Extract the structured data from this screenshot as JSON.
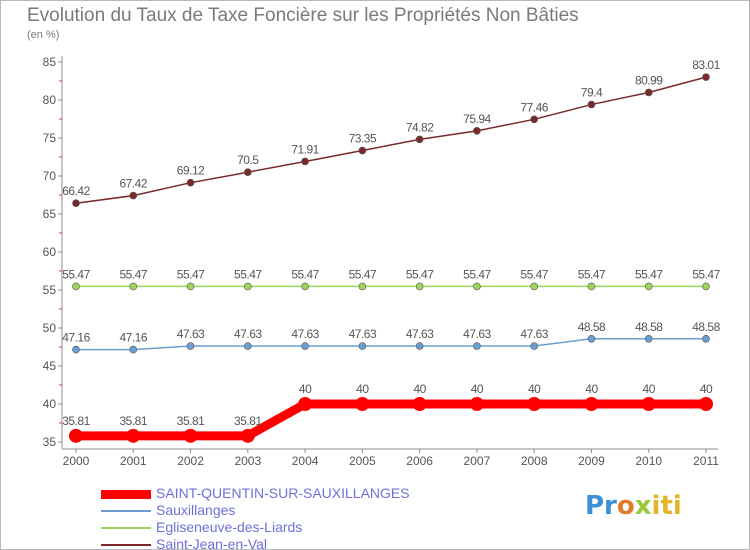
{
  "header": {
    "title": "Evolution du Taux de Taxe Foncière sur les Propriétés Non Bâties",
    "subtitle": "(en %)"
  },
  "logo": {
    "text": "Proxiti"
  },
  "colors": {
    "background": "#ffffff",
    "axis": "#8c8c8c",
    "tick_mark": "#d04040",
    "label": "#555555",
    "legend_text": "#6f6fdc"
  },
  "chart_data": {
    "type": "line",
    "title": "Evolution du Taux de Taxe Foncière sur les Propriétés Non Bâties",
    "ylabel": "(en %)",
    "xlabel": "",
    "x": [
      "2000",
      "2001",
      "2002",
      "2003",
      "2004",
      "2005",
      "2006",
      "2007",
      "2008",
      "2009",
      "2010",
      "2011"
    ],
    "ylim": [
      35,
      85
    ],
    "yticks": [
      35,
      40,
      45,
      50,
      55,
      60,
      65,
      70,
      75,
      80,
      85
    ],
    "grid": false,
    "legend_position": "bottom-left",
    "series": [
      {
        "name": "SAINT-QUENTIN-SUR-SAUXILLANGES",
        "color": "#ff0000",
        "emphasis": true,
        "values": [
          35.81,
          35.81,
          35.81,
          35.81,
          40,
          40,
          40,
          40,
          40,
          40,
          40,
          40
        ],
        "labels": [
          "35.81",
          "35.81",
          "35.81",
          "35.81",
          "40",
          "40",
          "40",
          "40",
          "40",
          "40",
          "40",
          "40"
        ]
      },
      {
        "name": "Sauxillanges",
        "color": "#6a9ed0",
        "values": [
          47.16,
          47.16,
          47.63,
          47.63,
          47.63,
          47.63,
          47.63,
          47.63,
          47.63,
          48.58,
          48.58,
          48.58
        ],
        "labels": [
          "47.16",
          "47.16",
          "47.63",
          "47.63",
          "47.63",
          "47.63",
          "47.63",
          "47.63",
          "47.63",
          "48.58",
          "48.58",
          "48.58"
        ]
      },
      {
        "name": "Egliseneuve-des-Liards",
        "color": "#9ad65a",
        "values": [
          55.47,
          55.47,
          55.47,
          55.47,
          55.47,
          55.47,
          55.47,
          55.47,
          55.47,
          55.47,
          55.47,
          55.47
        ],
        "labels": [
          "55.47",
          "55.47",
          "55.47",
          "55.47",
          "55.47",
          "55.47",
          "55.47",
          "55.47",
          "55.47",
          "55.47",
          "55.47",
          "55.47"
        ]
      },
      {
        "name": "Saint-Jean-en-Val",
        "color": "#7a2a2a",
        "values": [
          66.42,
          67.42,
          69.12,
          70.5,
          71.91,
          73.35,
          74.82,
          75.94,
          77.46,
          79.4,
          80.99,
          83.01
        ],
        "labels": [
          "66.42",
          "67.42",
          "69.12",
          "70.5",
          "71.91",
          "73.35",
          "74.82",
          "75.94",
          "77.46",
          "79.4",
          "80.99",
          "83.01"
        ]
      }
    ]
  }
}
